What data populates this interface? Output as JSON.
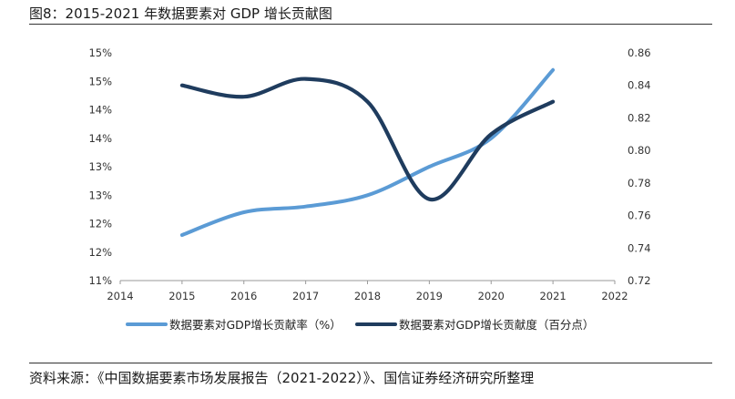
{
  "header": {
    "title": "图8：2015-2021 年数据要素对 GDP 增长贡献图"
  },
  "footer": {
    "source": "资料来源：《中国数据要素市场发展报告（2021-2022）》、国信证券经济研究所整理"
  },
  "chart_data": {
    "type": "line",
    "title": "",
    "x": [
      2015,
      2016,
      2017,
      2018,
      2019,
      2020,
      2021
    ],
    "x_ticks": [
      "2014",
      "2015",
      "2016",
      "2017",
      "2018",
      "2019",
      "2020",
      "2021",
      "2022"
    ],
    "xlim": [
      2014,
      2022
    ],
    "y_left_ticks": [
      "15%",
      "15%",
      "14%",
      "14%",
      "13%",
      "13%",
      "12%",
      "12%",
      "11%"
    ],
    "y_left_lim": [
      11,
      15
    ],
    "y_right_ticks": [
      "0.86",
      "0.84",
      "0.82",
      "0.80",
      "0.78",
      "0.76",
      "0.74",
      "0.72"
    ],
    "y_right_lim": [
      0.72,
      0.86
    ],
    "grid": false,
    "legend_position": "bottom",
    "series": [
      {
        "name": "数据要素对GDP增长贡献率（%）",
        "axis": "left",
        "color": "#5b9bd5",
        "values": [
          11.8,
          12.2,
          12.3,
          12.5,
          13.0,
          13.5,
          14.7
        ]
      },
      {
        "name": "数据要素对GDP增长贡献度（百分点）",
        "axis": "right",
        "color": "#1f3c5e",
        "values": [
          0.84,
          0.833,
          0.844,
          0.83,
          0.77,
          0.81,
          0.83
        ]
      }
    ]
  }
}
